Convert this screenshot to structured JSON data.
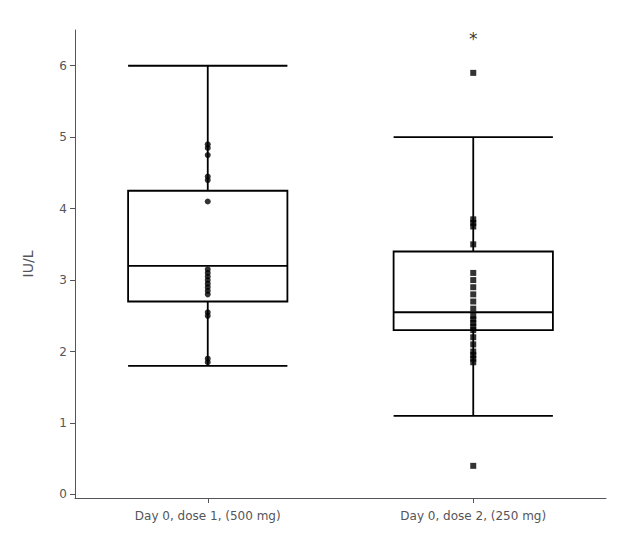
{
  "chart_data": {
    "type": "boxplot",
    "categories": [
      "Day 0, dose 1, (500 mg)",
      "Day 0, dose 2, (250 mg)"
    ],
    "ylabel": "IU/L",
    "ylim": [
      -0.05,
      6.5
    ],
    "yticks": [
      0,
      1,
      2,
      3,
      4,
      5,
      6
    ],
    "grid": false,
    "boxes": [
      {
        "whisker_low": 1.8,
        "q1": 2.7,
        "median": 3.2,
        "q3": 4.25,
        "whisker_high": 6.0,
        "points": [
          4.9,
          4.85,
          4.75,
          4.45,
          4.4,
          4.1,
          3.15,
          3.1,
          3.05,
          3.0,
          2.95,
          2.9,
          2.85,
          2.8,
          2.55,
          2.5,
          1.9,
          1.85
        ],
        "marker": "circle",
        "color": "#000000"
      },
      {
        "whisker_low": 1.1,
        "q1": 2.3,
        "median": 2.55,
        "q3": 3.4,
        "whisker_high": 5.0,
        "points": [
          3.85,
          3.8,
          3.75,
          3.5,
          3.1,
          3.0,
          2.9,
          2.8,
          2.7,
          2.6,
          2.5,
          2.45,
          2.4,
          2.35,
          2.3,
          2.2,
          2.1,
          2.0,
          1.95,
          1.9,
          1.85
        ],
        "outliers": [
          5.9,
          0.4
        ],
        "marker": "square",
        "color": "#000000"
      }
    ],
    "annotations": [
      {
        "text": "*",
        "x": "Day 0, dose 2, (250 mg)",
        "y": 6.25
      }
    ]
  }
}
